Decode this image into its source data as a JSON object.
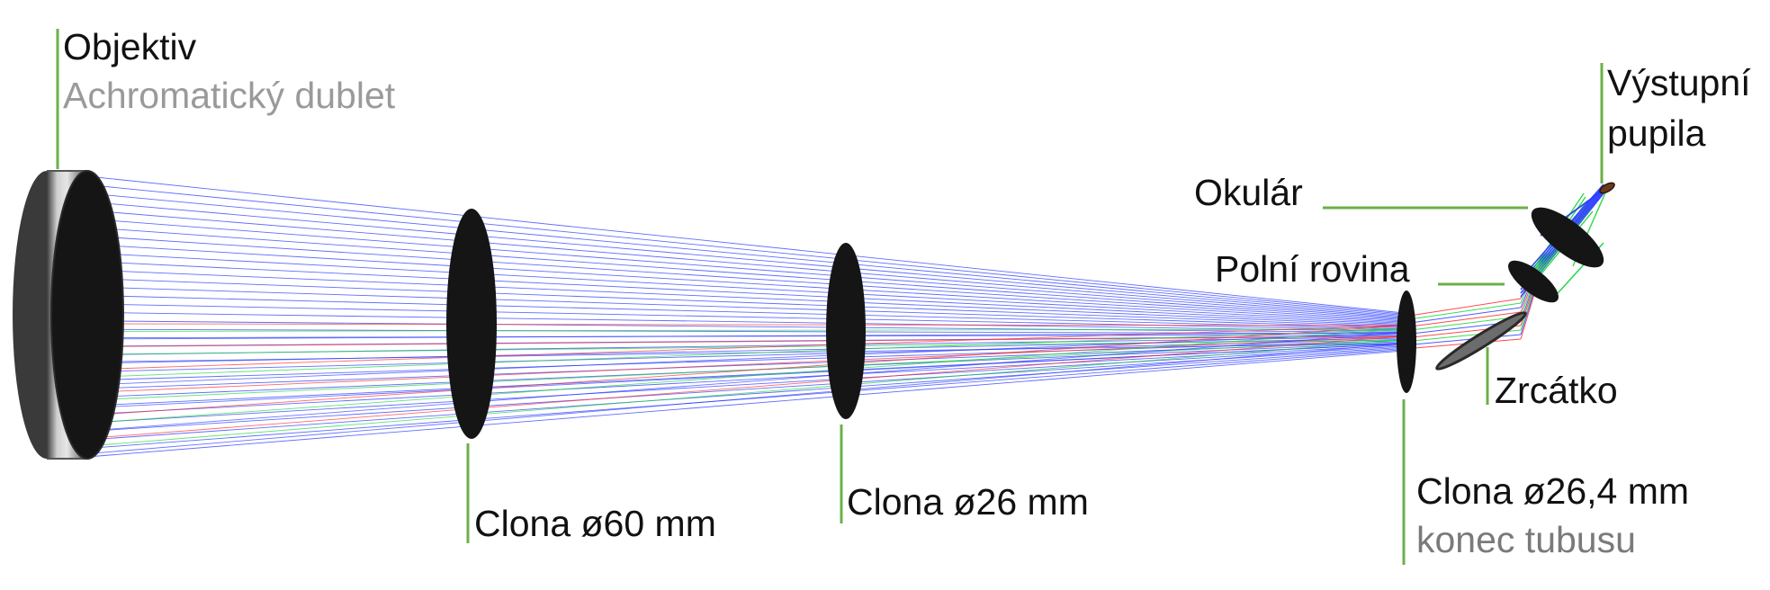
{
  "labels": {
    "objective": "Objektiv",
    "objective_sub": "Achromatický dublet",
    "stop_60": "Clona ø60 mm",
    "stop_26": "Clona ø26 mm",
    "stop_264": "Clona ø26,4 mm",
    "stop_264_sub": "konec tubusu",
    "mirror": "Zrcátko",
    "field_plane": "Polní rovina",
    "eyepiece": "Okulár",
    "exit_pupil_line1": "Výstupní",
    "exit_pupil_line2": "pupila"
  },
  "colors": {
    "leader": "#6bb04a",
    "ray_blue": "#2a3cff",
    "ray_red": "#ff2a2a",
    "ray_green": "#19d43a",
    "element_dark": "#151515",
    "barrel_light": "#d0d0d0",
    "barrel_dark": "#3c3c3c"
  }
}
